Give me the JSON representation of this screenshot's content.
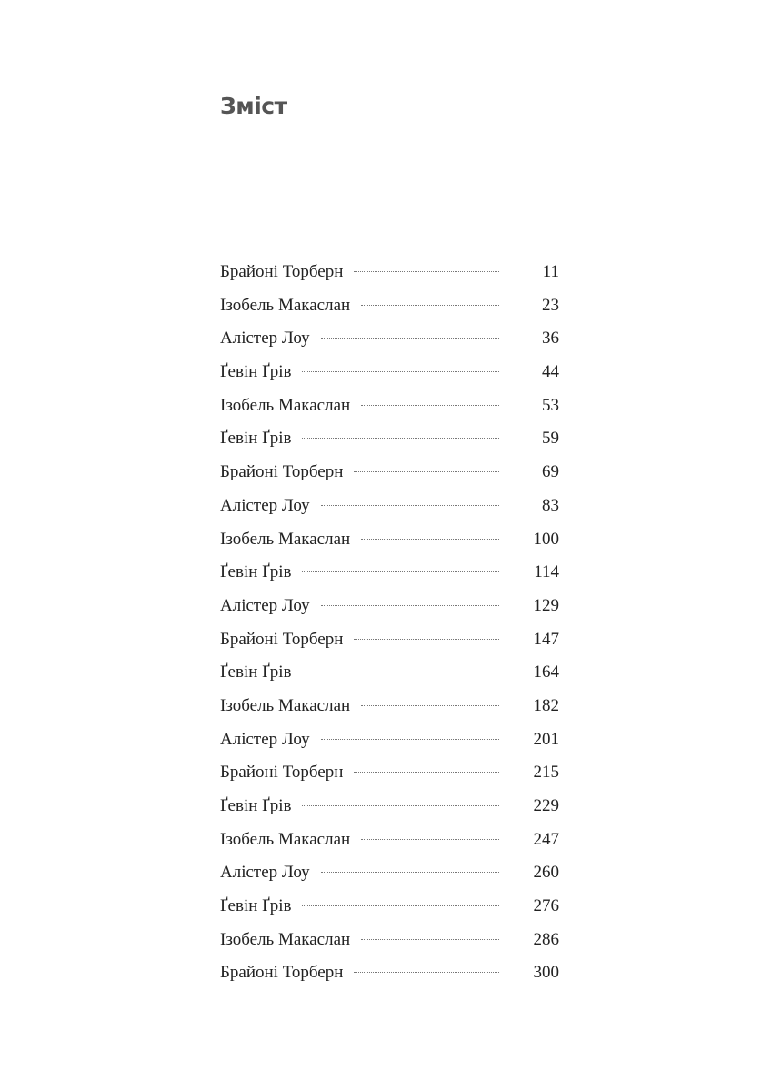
{
  "title": "Зміст",
  "entries": [
    {
      "name": "Брайоні Торберн",
      "page": "11"
    },
    {
      "name": "Ізобель Макаслан",
      "page": "23"
    },
    {
      "name": "Алістер Лоу",
      "page": "36"
    },
    {
      "name": "Ґевін Ґрів",
      "page": "44"
    },
    {
      "name": "Ізобель Макаслан",
      "page": "53"
    },
    {
      "name": "Ґевін Ґрів",
      "page": "59"
    },
    {
      "name": "Брайоні Торберн",
      "page": "69"
    },
    {
      "name": "Алістер Лоу",
      "page": "83"
    },
    {
      "name": "Ізобель Макаслан",
      "page": "100"
    },
    {
      "name": "Ґевін Ґрів",
      "page": "114"
    },
    {
      "name": "Алістер Лоу",
      "page": "129"
    },
    {
      "name": "Брайоні Торберн",
      "page": "147"
    },
    {
      "name": "Ґевін Ґрів",
      "page": "164"
    },
    {
      "name": "Ізобель Макаслан",
      "page": "182"
    },
    {
      "name": "Алістер Лоу",
      "page": "201"
    },
    {
      "name": "Брайоні Торберн",
      "page": "215"
    },
    {
      "name": "Ґевін Ґрів",
      "page": "229"
    },
    {
      "name": "Ізобель Макаслан",
      "page": "247"
    },
    {
      "name": "Алістер Лоу",
      "page": "260"
    },
    {
      "name": "Ґевін Ґрів",
      "page": "276"
    },
    {
      "name": "Ізобель Макаслан",
      "page": "286"
    },
    {
      "name": "Брайоні Торберн",
      "page": "300"
    }
  ]
}
